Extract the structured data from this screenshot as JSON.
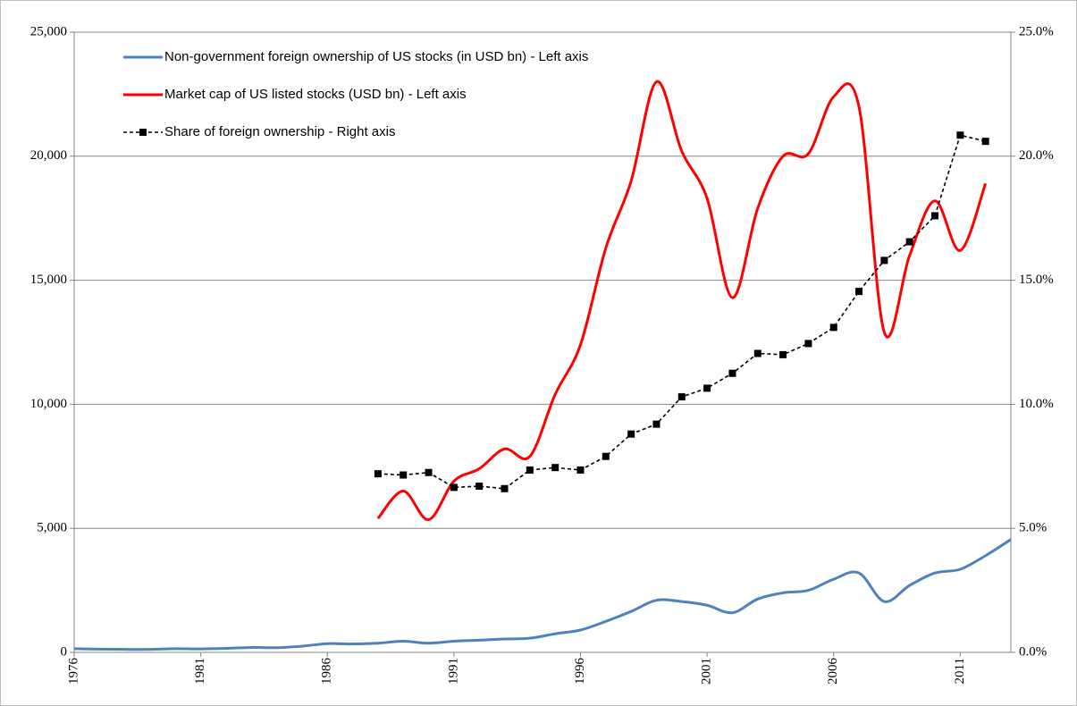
{
  "chart_data": {
    "type": "line",
    "x": [
      1976,
      1977,
      1978,
      1979,
      1980,
      1981,
      1982,
      1983,
      1984,
      1985,
      1986,
      1987,
      1988,
      1989,
      1990,
      1991,
      1992,
      1993,
      1994,
      1995,
      1996,
      1997,
      1998,
      1999,
      2000,
      2001,
      2002,
      2003,
      2004,
      2005,
      2006,
      2007,
      2008,
      2009,
      2010,
      2011,
      2012,
      2013
    ],
    "xlim": [
      1976,
      2013
    ],
    "xticks": [
      1976,
      1981,
      1986,
      1991,
      1996,
      2001,
      2006,
      2011
    ],
    "ylim": [
      0,
      25000
    ],
    "yticks": [
      0,
      {
        "value": 5000,
        "label": "5,000"
      },
      {
        "value": 10000,
        "label": "10,000"
      },
      {
        "value": 15000,
        "label": "15,000"
      },
      {
        "value": 20000,
        "label": "20,000"
      },
      {
        "value": 25000,
        "label": "25,000"
      }
    ],
    "y2lim": [
      0,
      25
    ],
    "y2ticks": [
      {
        "value": 0,
        "label": "0.0%"
      },
      {
        "value": 5,
        "label": "5.0%"
      },
      {
        "value": 10,
        "label": "10.0%"
      },
      {
        "value": 15,
        "label": "15.0%"
      },
      {
        "value": 20,
        "label": "20.0%"
      },
      {
        "value": 25,
        "label": "25.0%"
      }
    ],
    "grid": true,
    "legend": "upper left",
    "series": [
      {
        "name": "Non-government foreign ownership of US stocks (in USD bn) - Left axis",
        "color": "#4f81bd",
        "style": "smooth",
        "values": [
          150,
          130,
          120,
          120,
          150,
          140,
          160,
          200,
          190,
          250,
          350,
          340,
          370,
          450,
          370,
          450,
          490,
          540,
          570,
          750,
          900,
          1250,
          1650,
          2100,
          2050,
          1900,
          1600,
          2150,
          2400,
          2500,
          2950,
          3200,
          2050,
          2700,
          3200,
          3350,
          3900,
          4550
        ]
      },
      {
        "name": "Market cap of US listed stocks (USD bn) - Left axis",
        "color": "#ff0000",
        "style": "smooth",
        "values": [
          null,
          null,
          null,
          null,
          null,
          null,
          null,
          null,
          null,
          null,
          null,
          null,
          5400,
          6500,
          5350,
          6900,
          7400,
          8200,
          7900,
          10400,
          12400,
          16300,
          19000,
          23000,
          20200,
          18300,
          14300,
          17900,
          20000,
          20100,
          22400,
          22000,
          12900,
          16000,
          18200,
          16200,
          18900,
          null
        ]
      },
      {
        "name": "Share of foreign ownership - Right axis",
        "color": "#000000",
        "style": "dashed-markers",
        "axis": "y2",
        "values": [
          null,
          null,
          null,
          null,
          null,
          null,
          null,
          null,
          null,
          null,
          null,
          null,
          7.2,
          7.15,
          7.25,
          6.65,
          6.7,
          6.6,
          7.35,
          7.45,
          7.35,
          7.9,
          8.8,
          9.2,
          10.3,
          10.65,
          11.25,
          12.05,
          12.0,
          12.45,
          13.1,
          14.55,
          15.8,
          16.55,
          17.6,
          20.85,
          20.6,
          null
        ]
      }
    ]
  }
}
